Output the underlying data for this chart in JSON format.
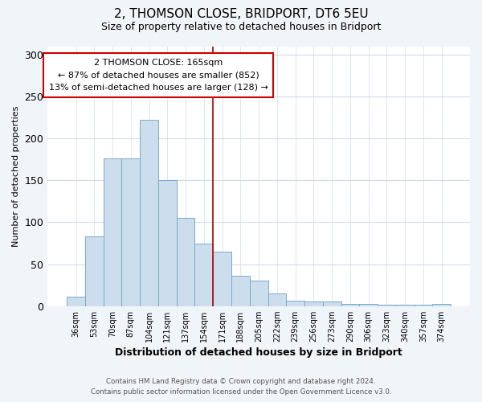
{
  "title": "2, THOMSON CLOSE, BRIDPORT, DT6 5EU",
  "subtitle": "Size of property relative to detached houses in Bridport",
  "xlabel": "Distribution of detached houses by size in Bridport",
  "ylabel": "Number of detached properties",
  "bar_labels": [
    "36sqm",
    "53sqm",
    "70sqm",
    "87sqm",
    "104sqm",
    "121sqm",
    "137sqm",
    "154sqm",
    "171sqm",
    "188sqm",
    "205sqm",
    "222sqm",
    "239sqm",
    "256sqm",
    "273sqm",
    "290sqm",
    "306sqm",
    "323sqm",
    "340sqm",
    "357sqm",
    "374sqm"
  ],
  "bar_values": [
    11,
    83,
    176,
    176,
    222,
    150,
    105,
    75,
    65,
    36,
    30,
    15,
    6,
    5,
    5,
    3,
    3,
    2,
    2,
    2,
    3
  ],
  "bar_color": "#ccdded",
  "bar_edge_color": "#7aaac8",
  "vline_color": "#aa0000",
  "ylim": [
    0,
    310
  ],
  "yticks": [
    0,
    50,
    100,
    150,
    200,
    250,
    300
  ],
  "annotation_title": "2 THOMSON CLOSE: 165sqm",
  "annotation_line1": "← 87% of detached houses are smaller (852)",
  "annotation_line2": "13% of semi-detached houses are larger (128) →",
  "annotation_box_color": "#ffffff",
  "annotation_box_edge": "#cc0000",
  "footer_line1": "Contains HM Land Registry data © Crown copyright and database right 2024.",
  "footer_line2": "Contains public sector information licensed under the Open Government Licence v3.0.",
  "plot_bg": "#ffffff",
  "fig_bg": "#f0f5fa",
  "grid_color": "#d0dce8"
}
